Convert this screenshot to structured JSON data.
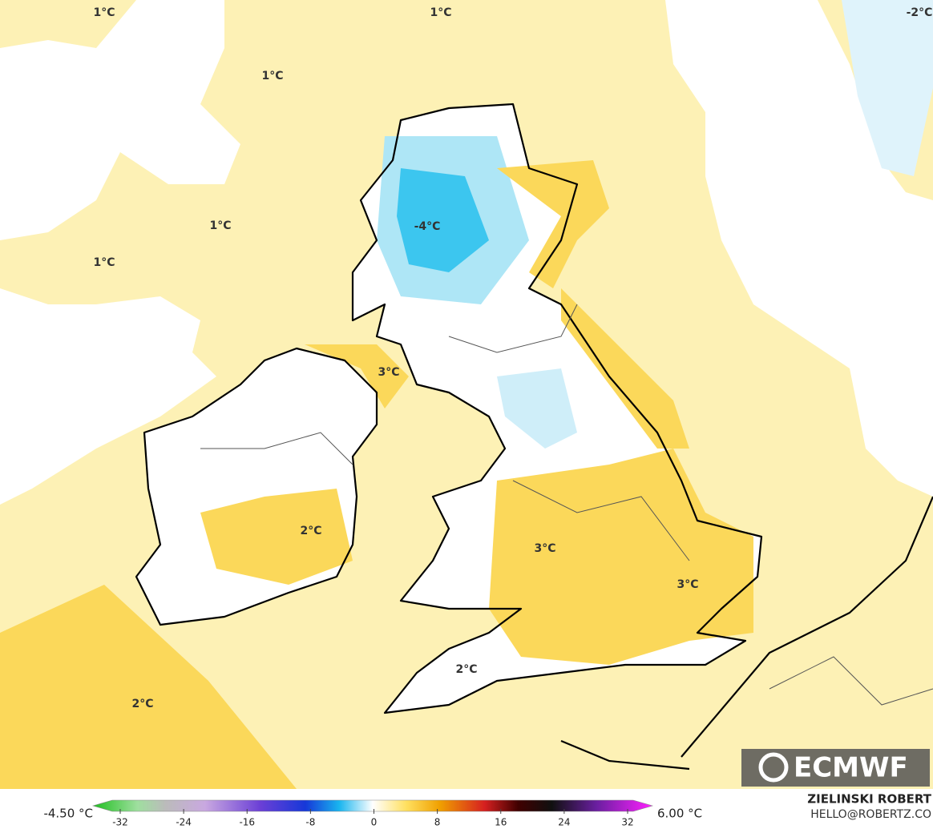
{
  "map_labels": [
    "1°C",
    "1°C",
    "-2°C",
    "1°C",
    "1°C",
    "1°C",
    "-4°C",
    "3°C",
    "2°C",
    "3°C",
    "3°C",
    "2°C",
    "2°C"
  ],
  "logo": "ECMWF",
  "legend": {
    "min_label": "-4.50 °C",
    "max_label": "6.00 °C",
    "lim": [
      -32,
      32
    ],
    "ticks": [
      -32,
      -24,
      -16,
      -8,
      0,
      8,
      16,
      24,
      32
    ]
  },
  "credit": {
    "name": "ZIELINSKI ROBERT",
    "email": "HELLO@ROBERTZ.CO"
  }
}
